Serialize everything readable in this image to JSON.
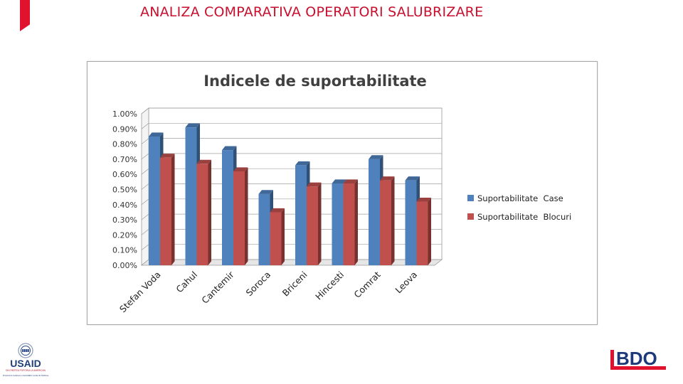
{
  "page": {
    "title": "ANALIZA COMPARATIVA OPERATORI SALUBRIZARE",
    "accent_color": "#e1122e",
    "title_color": "#c8102e"
  },
  "logos": {
    "usaid": {
      "text": "USAID",
      "tagline": "DIN PARTEA POPORULUI AMERICAN",
      "program": "Proiectul de Susținere a Autorităților Locale din Moldova",
      "icon": "usaid-seal-icon"
    },
    "bdo": {
      "text": "BDO",
      "color": "#1c3a7a",
      "accent": "#e1122e",
      "icon": "bdo-logo-icon"
    }
  },
  "chart_data": {
    "type": "bar",
    "title": "Indicele de suportabilitate",
    "categories": [
      "Stefan Voda",
      "Cahul",
      "Cantemir",
      "Soroca",
      "Briceni",
      "Hincesti",
      "Comrat",
      "Leova"
    ],
    "series": [
      {
        "name": "Suportabilitate  Case",
        "values": [
          0.85,
          0.91,
          0.76,
          0.47,
          0.66,
          0.54,
          0.7,
          0.56
        ],
        "color": "#4f81bd"
      },
      {
        "name": "Suportabilitate  Blocuri",
        "values": [
          0.71,
          0.67,
          0.62,
          0.35,
          0.52,
          0.54,
          0.56,
          0.42
        ],
        "color": "#c0504d"
      }
    ],
    "unit": "%",
    "ylim": [
      0,
      1.0
    ],
    "yticks": [
      "0.00%",
      "0.10%",
      "0.20%",
      "0.30%",
      "0.40%",
      "0.50%",
      "0.60%",
      "0.70%",
      "0.80%",
      "0.90%",
      "1.00%"
    ],
    "grid": true,
    "legend": "right",
    "style": "3d"
  }
}
